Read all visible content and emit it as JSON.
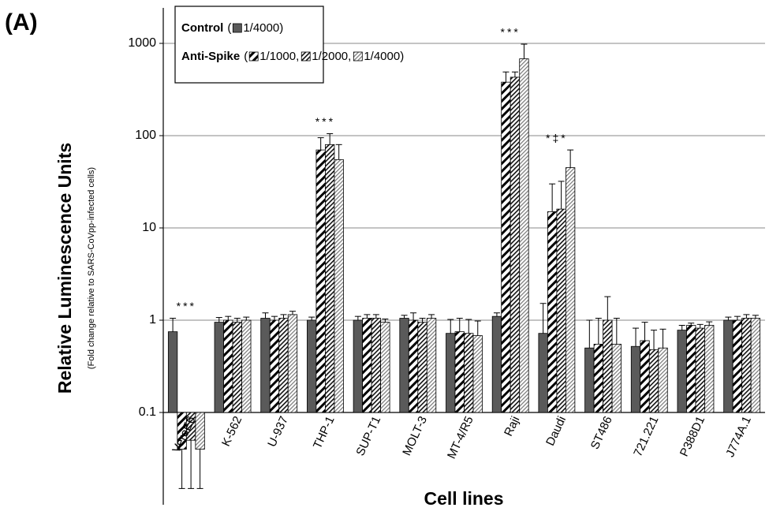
{
  "chart_data": {
    "type": "bar",
    "panel_label": "(A)",
    "ylabel": "Relative Luminescence Units",
    "ylabel_sub": "(Fold change relative to SARS-CoVpp-infected cells)",
    "xlabel": "Cell lines",
    "categories": [
      "VeroE6",
      "K-562",
      "U-937",
      "THP-1",
      "SUP-T1",
      "MOLT-3",
      "MT-4/R5",
      "Raji",
      "Daudi",
      "ST486",
      "721.221",
      "P388D1",
      "J774A.1"
    ],
    "series": [
      {
        "name": "1/4000",
        "color": "#5a5a5a",
        "pattern": "solid",
        "values": [
          0.75,
          0.95,
          1.05,
          1.0,
          1.0,
          1.05,
          0.72,
          1.1,
          0.72,
          0.5,
          0.52,
          0.78,
          1.0
        ],
        "errors": [
          0.3,
          0.12,
          0.15,
          0.08,
          0.1,
          0.08,
          0.3,
          0.1,
          0.8,
          0.5,
          0.3,
          0.1,
          0.08
        ]
      },
      {
        "name": "1/1000",
        "color": "#000000",
        "pattern": "hatch-wide",
        "values": [
          0.04,
          1.0,
          1.0,
          70,
          1.05,
          1.0,
          0.75,
          380,
          15,
          0.55,
          0.6,
          0.88,
          1.0
        ],
        "errors": [
          0.025,
          0.1,
          0.1,
          25,
          0.1,
          0.2,
          0.3,
          110,
          15,
          0.5,
          0.35,
          0.05,
          0.1
        ]
      },
      {
        "name": "1/2000",
        "color": "#111111",
        "pattern": "hatch-dense",
        "values": [
          0.05,
          0.95,
          1.05,
          80,
          1.05,
          0.95,
          0.72,
          430,
          16,
          1.0,
          0.48,
          0.82,
          1.05
        ],
        "errors": [
          0.035,
          0.1,
          0.1,
          25,
          0.1,
          0.1,
          0.3,
          60,
          16,
          0.8,
          0.3,
          0.08,
          0.1
        ]
      },
      {
        "name": "1/4000",
        "color": "#777777",
        "pattern": "hatch-light",
        "values": [
          0.04,
          1.0,
          1.15,
          55,
          0.95,
          1.05,
          0.68,
          680,
          45,
          0.55,
          0.5,
          0.88,
          1.05
        ],
        "errors": [
          0.025,
          0.08,
          0.1,
          25,
          0.08,
          0.1,
          0.3,
          300,
          25,
          0.5,
          0.3,
          0.08,
          0.08
        ]
      }
    ],
    "legend": {
      "groups": [
        {
          "label": "Control",
          "open": "(",
          "close": ")",
          "sep": ",",
          "series": [
            0
          ]
        },
        {
          "label": "Anti-Spike",
          "open": "(",
          "close": ")",
          "sep": ",",
          "series": [
            1,
            2,
            3
          ]
        }
      ]
    },
    "annotations": [
      {
        "category": "VeroE6",
        "text": "***"
      },
      {
        "category": "THP-1",
        "text": "***"
      },
      {
        "category": "Raji",
        "text": "***"
      },
      {
        "category": "Daudi",
        "text": "*‡*"
      }
    ],
    "log_scale": true,
    "bar_base": 0.1,
    "ylim": [
      0.01,
      1000
    ],
    "yticks": [
      0.1,
      1,
      10,
      100,
      1000
    ],
    "grid": true
  }
}
